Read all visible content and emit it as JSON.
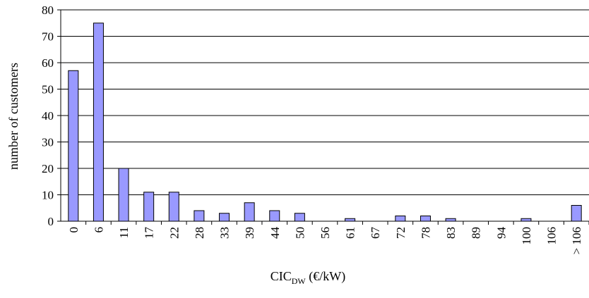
{
  "chart_data": {
    "type": "bar",
    "title": "",
    "ylabel": "number of customers",
    "xlabel": "CIC",
    "xlabel_subscript": "DW",
    "xlabel_suffix": " (€/kW)",
    "ylim": [
      0,
      80
    ],
    "yticks": [
      "0",
      "10",
      "20",
      "30",
      "40",
      "50",
      "60",
      "70",
      "80"
    ],
    "grid": true,
    "categories": [
      "0",
      "6",
      "11",
      "17",
      "22",
      "28",
      "33",
      "39",
      "44",
      "50",
      "56",
      "61",
      "67",
      "72",
      "78",
      "83",
      "89",
      "94",
      "100",
      "106",
      "> 106"
    ],
    "values": [
      57,
      75,
      20,
      11,
      11,
      4,
      3,
      7,
      4,
      3,
      0,
      1,
      0,
      2,
      2,
      1,
      0,
      0,
      1,
      0,
      6
    ],
    "bar_color": "#9999ff",
    "bar_stroke": "#000000"
  }
}
